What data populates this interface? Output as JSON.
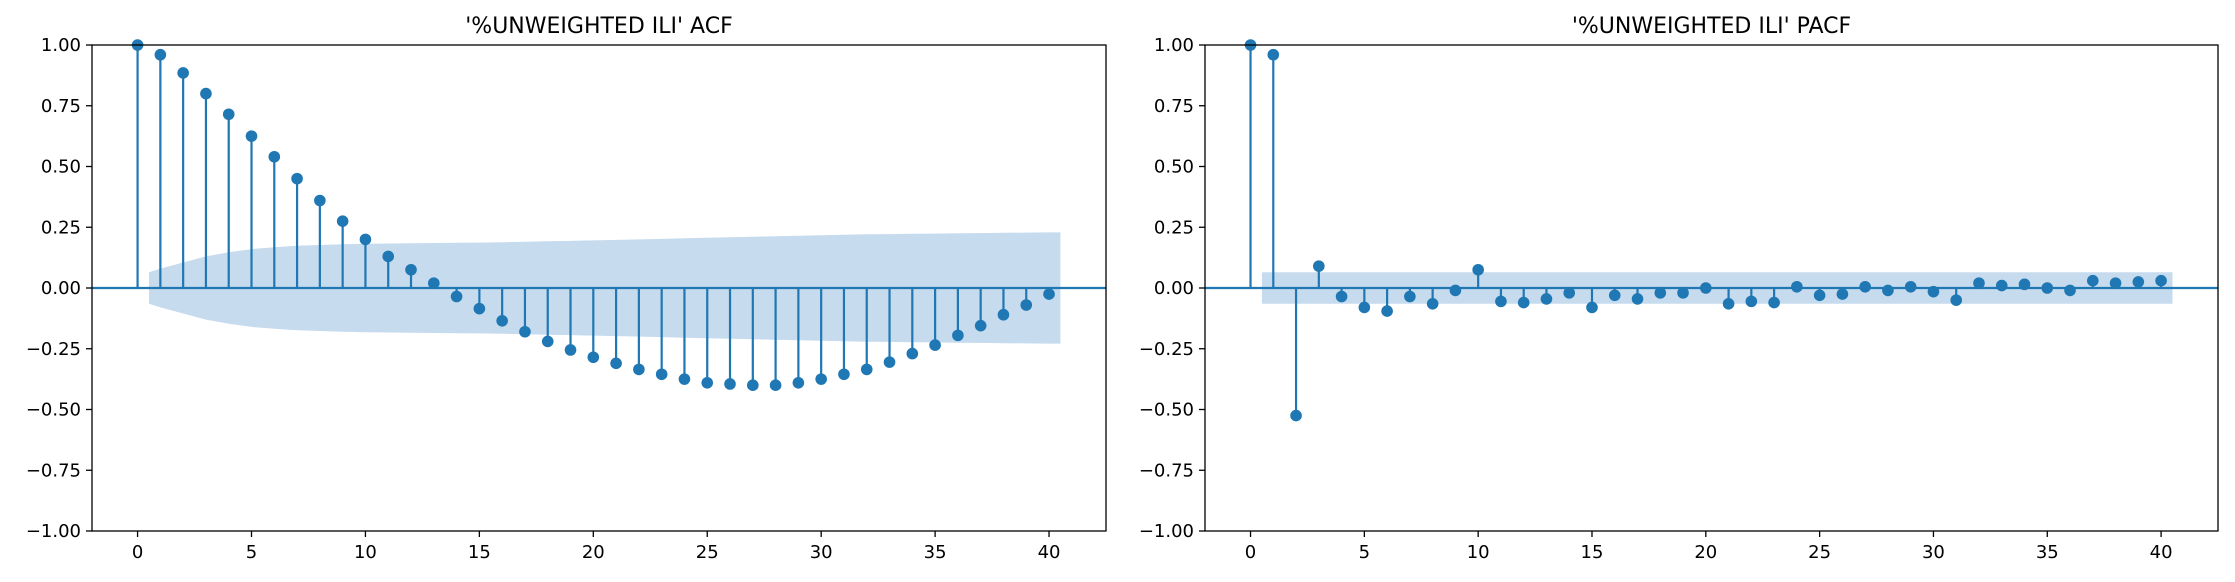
{
  "colors": {
    "stem": "#1f77b4",
    "confidence_band": "#c6dbee",
    "zero_line": "#1f77b4",
    "axes": "#000000",
    "background": "#ffffff"
  },
  "chart_data": [
    {
      "type": "stem",
      "title": "'%UNWEIGHTED ILI' ACF",
      "xlabel": "",
      "ylabel": "",
      "xlim": [
        -2,
        42.5
      ],
      "ylim": [
        -1.0,
        1.0
      ],
      "x_ticks": [
        0,
        5,
        10,
        15,
        20,
        25,
        30,
        35,
        40
      ],
      "x_tick_labels": [
        "0",
        "5",
        "10",
        "15",
        "20",
        "25",
        "30",
        "35",
        "40"
      ],
      "y_ticks": [
        -1.0,
        -0.75,
        -0.5,
        -0.25,
        0.0,
        0.25,
        0.5,
        0.75,
        1.0
      ],
      "y_tick_labels": [
        "−1.00",
        "−0.75",
        "−0.50",
        "−0.25",
        "0.00",
        "0.25",
        "0.50",
        "0.75",
        "1.00"
      ],
      "grid": false,
      "lags": [
        0,
        1,
        2,
        3,
        4,
        5,
        6,
        7,
        8,
        9,
        10,
        11,
        12,
        13,
        14,
        15,
        16,
        17,
        18,
        19,
        20,
        21,
        22,
        23,
        24,
        25,
        26,
        27,
        28,
        29,
        30,
        31,
        32,
        33,
        34,
        35,
        36,
        37,
        38,
        39,
        40
      ],
      "values": [
        1.0,
        0.96,
        0.885,
        0.8,
        0.715,
        0.625,
        0.54,
        0.45,
        0.36,
        0.275,
        0.2,
        0.13,
        0.075,
        0.02,
        -0.035,
        -0.085,
        -0.135,
        -0.18,
        -0.22,
        -0.255,
        -0.285,
        -0.31,
        -0.335,
        -0.355,
        -0.375,
        -0.39,
        -0.395,
        -0.4,
        -0.4,
        -0.39,
        -0.375,
        -0.355,
        -0.335,
        -0.305,
        -0.27,
        -0.235,
        -0.195,
        -0.155,
        -0.11,
        -0.07,
        -0.025
      ],
      "confidence_band": {
        "x_range": [
          0.5,
          40.5
        ],
        "lags": [
          0.5,
          1,
          2,
          3,
          4,
          5,
          6,
          7,
          8,
          9,
          10,
          11,
          12,
          13,
          14,
          15,
          16,
          17,
          18,
          19,
          20,
          21,
          22,
          23,
          24,
          25,
          26,
          27,
          28,
          29,
          30,
          31,
          32,
          33,
          34,
          35,
          36,
          37,
          38,
          39,
          40,
          40.5
        ],
        "upper": [
          0.065,
          0.08,
          0.105,
          0.13,
          0.147,
          0.16,
          0.168,
          0.174,
          0.177,
          0.18,
          0.182,
          0.183,
          0.184,
          0.185,
          0.186,
          0.187,
          0.188,
          0.19,
          0.192,
          0.194,
          0.196,
          0.198,
          0.2,
          0.202,
          0.205,
          0.207,
          0.209,
          0.211,
          0.213,
          0.215,
          0.217,
          0.219,
          0.221,
          0.222,
          0.223,
          0.224,
          0.225,
          0.226,
          0.227,
          0.228,
          0.229,
          0.229
        ]
      }
    },
    {
      "type": "stem",
      "title": "'%UNWEIGHTED ILI' PACF",
      "xlabel": "",
      "ylabel": "",
      "xlim": [
        -2,
        42.5
      ],
      "ylim": [
        -1.0,
        1.0
      ],
      "x_ticks": [
        0,
        5,
        10,
        15,
        20,
        25,
        30,
        35,
        40
      ],
      "x_tick_labels": [
        "0",
        "5",
        "10",
        "15",
        "20",
        "25",
        "30",
        "35",
        "40"
      ],
      "y_ticks": [
        -1.0,
        -0.75,
        -0.5,
        -0.25,
        0.0,
        0.25,
        0.5,
        0.75,
        1.0
      ],
      "y_tick_labels": [
        "−1.00",
        "−0.75",
        "−0.50",
        "−0.25",
        "0.00",
        "0.25",
        "0.50",
        "0.75",
        "1.00"
      ],
      "grid": false,
      "lags": [
        0,
        1,
        2,
        3,
        4,
        5,
        6,
        7,
        8,
        9,
        10,
        11,
        12,
        13,
        14,
        15,
        16,
        17,
        18,
        19,
        20,
        21,
        22,
        23,
        24,
        25,
        26,
        27,
        28,
        29,
        30,
        31,
        32,
        33,
        34,
        35,
        36,
        37,
        38,
        39,
        40
      ],
      "values": [
        1.0,
        0.96,
        -0.525,
        0.09,
        -0.035,
        -0.08,
        -0.095,
        -0.035,
        -0.065,
        -0.01,
        0.075,
        -0.055,
        -0.06,
        -0.045,
        -0.02,
        -0.08,
        -0.03,
        -0.045,
        -0.02,
        -0.02,
        0.0,
        -0.065,
        -0.055,
        -0.06,
        0.005,
        -0.03,
        -0.025,
        0.005,
        -0.01,
        0.005,
        -0.015,
        -0.05,
        0.02,
        0.01,
        0.015,
        0.0,
        -0.01,
        0.03,
        0.02,
        0.025,
        0.03
      ],
      "confidence_band": {
        "x_range": [
          0.5,
          40.5
        ],
        "lags": [
          0.5,
          40.5
        ],
        "upper": [
          0.065,
          0.065
        ]
      }
    }
  ]
}
